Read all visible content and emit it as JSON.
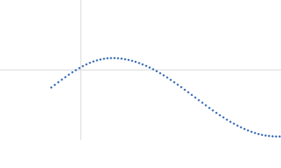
{
  "chart_data": {
    "type": "scatter",
    "color": "#3a6db5",
    "xlim": [
      -1.15,
      2.85
    ],
    "ylim": [
      -1,
      1
    ],
    "x": [
      -0.42,
      -0.37,
      -0.32,
      -0.27,
      -0.22,
      -0.17,
      -0.12,
      -0.07,
      -0.02,
      0.03,
      0.08,
      0.13,
      0.18,
      0.23,
      0.28,
      0.33,
      0.38,
      0.43,
      0.48,
      0.53,
      0.58,
      0.63,
      0.68,
      0.73,
      0.78,
      0.83,
      0.88,
      0.93,
      0.98,
      1.03,
      1.08,
      1.13,
      1.18,
      1.23,
      1.28,
      1.33,
      1.38,
      1.43,
      1.48,
      1.53,
      1.58,
      1.63,
      1.68,
      1.73,
      1.78,
      1.83,
      1.88,
      1.93,
      1.98,
      2.03,
      2.08,
      2.13,
      2.18,
      2.23,
      2.28,
      2.33,
      2.38,
      2.43,
      2.48,
      2.53,
      2.58,
      2.63,
      2.68,
      2.73,
      2.78,
      2.83
    ],
    "values": [
      -0.25,
      -0.212,
      -0.175,
      -0.138,
      -0.102,
      -0.067,
      -0.033,
      -0.002,
      0.028,
      0.055,
      0.08,
      0.102,
      0.121,
      0.137,
      0.15,
      0.16,
      0.167,
      0.17,
      0.17,
      0.167,
      0.162,
      0.154,
      0.144,
      0.131,
      0.116,
      0.099,
      0.08,
      0.059,
      0.035,
      0.01,
      -0.017,
      -0.046,
      -0.076,
      -0.108,
      -0.141,
      -0.175,
      -0.21,
      -0.245,
      -0.282,
      -0.319,
      -0.356,
      -0.394,
      -0.431,
      -0.468,
      -0.505,
      -0.542,
      -0.577,
      -0.612,
      -0.646,
      -0.678,
      -0.71,
      -0.74,
      -0.768,
      -0.795,
      -0.819,
      -0.843,
      -0.864,
      -0.883,
      -0.9,
      -0.915,
      -0.927,
      -0.936,
      -0.943,
      -0.948,
      -0.95,
      -0.95
    ]
  }
}
